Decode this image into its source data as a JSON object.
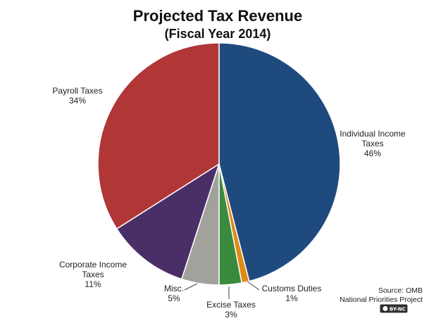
{
  "chart_data": {
    "type": "pie",
    "title": "Projected Tax Revenue",
    "subtitle": "(Fiscal Year 2014)",
    "slices": [
      {
        "label_lines": [
          "Individual  Income",
          "Taxes"
        ],
        "value": 46,
        "value_label": "46%",
        "color": "#1f4a7e"
      },
      {
        "label_lines": [
          "Customs Duties"
        ],
        "value": 1,
        "value_label": "1%",
        "color": "#e08a18"
      },
      {
        "label_lines": [
          "Excise Taxes"
        ],
        "value": 3,
        "value_label": "3%",
        "color": "#3a8a3e"
      },
      {
        "label_lines": [
          "Misc."
        ],
        "value": 5,
        "value_label": "5%",
        "color": "#a3a19c"
      },
      {
        "label_lines": [
          "Corporate  Income",
          "Taxes"
        ],
        "value": 11,
        "value_label": "11%",
        "color": "#4a2f67"
      },
      {
        "label_lines": [
          "Payroll  Taxes"
        ],
        "value": 34,
        "value_label": "34%",
        "color": "#b13636"
      }
    ]
  },
  "footer": {
    "source": "Source: OMB",
    "org": "National Priorities Project",
    "license": "BY-NC"
  }
}
